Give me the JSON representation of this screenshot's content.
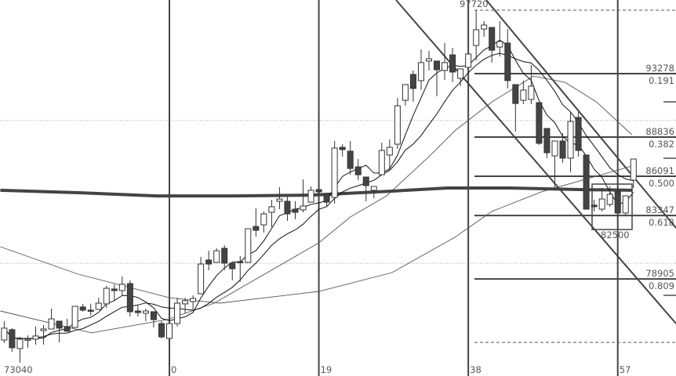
{
  "chart_data": {
    "type": "candlestick",
    "title": "",
    "x_tick_labels": [
      {
        "value": 0,
        "label": "0"
      },
      {
        "value": 19,
        "label": "19"
      },
      {
        "value": 38,
        "label": "38"
      },
      {
        "value": 57,
        "label": "57"
      }
    ],
    "first_bar_index": -21,
    "ohlc_fields": [
      "open",
      "high",
      "low",
      "close"
    ],
    "candles": [
      [
        74630,
        75950,
        74420,
        75460
      ],
      [
        75350,
        75460,
        73810,
        74090
      ],
      [
        74030,
        74850,
        73040,
        74690
      ],
      [
        74630,
        74960,
        74090,
        74690
      ],
      [
        74690,
        75570,
        74310,
        74910
      ],
      [
        75290,
        75680,
        74310,
        75400
      ],
      [
        75400,
        76830,
        75400,
        76110
      ],
      [
        75950,
        75950,
        74470,
        75460
      ],
      [
        75570,
        76110,
        75240,
        75240
      ],
      [
        75510,
        76990,
        75510,
        76990
      ],
      [
        76940,
        77160,
        76610,
        76720
      ],
      [
        76720,
        77160,
        76330,
        76660
      ],
      [
        76770,
        77590,
        76770,
        77210
      ],
      [
        77160,
        78420,
        76880,
        78250
      ],
      [
        78200,
        78530,
        77430,
        78090
      ],
      [
        78090,
        79080,
        77760,
        78530
      ],
      [
        78580,
        78800,
        76280,
        76610
      ],
      [
        76660,
        77050,
        76280,
        76550
      ],
      [
        76500,
        76830,
        75950,
        76660
      ],
      [
        76610,
        76610,
        75510,
        76060
      ],
      [
        75780,
        75950,
        74740,
        74850
      ],
      [
        74740,
        75780,
        74740,
        75780
      ],
      [
        75780,
        77590,
        75570,
        77210
      ],
      [
        77160,
        77590,
        76500,
        77380
      ],
      [
        77320,
        77760,
        76770,
        77540
      ],
      [
        77870,
        80450,
        77870,
        79950
      ],
      [
        80230,
        80880,
        79510,
        79950
      ],
      [
        80060,
        81050,
        80060,
        80880
      ],
      [
        81050,
        81270,
        79510,
        80010
      ],
      [
        80010,
        80010,
        78800,
        79620
      ],
      [
        80120,
        80500,
        78690,
        80060
      ],
      [
        80060,
        82420,
        80060,
        82420
      ],
      [
        82580,
        83840,
        81870,
        82310
      ],
      [
        82690,
        83630,
        82150,
        83460
      ],
      [
        83570,
        84450,
        82530,
        83960
      ],
      [
        84340,
        85330,
        83790,
        84500
      ],
      [
        84340,
        84670,
        82970,
        83460
      ],
      [
        83790,
        84340,
        83080,
        83570
      ],
      [
        83740,
        85870,
        83570,
        84010
      ],
      [
        84280,
        85380,
        84280,
        85110
      ],
      [
        85160,
        85160,
        84720,
        85000
      ],
      [
        84890,
        84890,
        84010,
        84280
      ],
      [
        84610,
        88560,
        84180,
        88070
      ],
      [
        88120,
        88340,
        87470,
        87960
      ],
      [
        87850,
        88560,
        86200,
        86640
      ],
      [
        86750,
        87300,
        85820,
        86200
      ],
      [
        86040,
        86040,
        84340,
        85440
      ],
      [
        85110,
        85380,
        84560,
        85380
      ],
      [
        86200,
        88450,
        86200,
        87900
      ],
      [
        87580,
        88670,
        86640,
        88120
      ],
      [
        88340,
        91580,
        88010,
        91030
      ],
      [
        91410,
        92510,
        91030,
        92510
      ],
      [
        93220,
        93500,
        91300,
        92240
      ],
      [
        92790,
        94980,
        92130,
        94050
      ],
      [
        94160,
        94870,
        93500,
        94320
      ],
      [
        94160,
        94160,
        91690,
        93550
      ],
      [
        93500,
        95420,
        92840,
        94050
      ],
      [
        94590,
        95090,
        92680,
        93390
      ],
      [
        92950,
        93610,
        92400,
        93610
      ],
      [
        93720,
        94650,
        93720,
        94650
      ],
      [
        95250,
        97720,
        94210,
        96350
      ],
      [
        96400,
        96950,
        95860,
        96680
      ],
      [
        96510,
        96510,
        94050,
        94920
      ],
      [
        95140,
        96950,
        94480,
        95530
      ],
      [
        95420,
        96400,
        92240,
        92790
      ],
      [
        92510,
        92510,
        89220,
        91190
      ],
      [
        91410,
        92790,
        91140,
        92130
      ],
      [
        91470,
        93880,
        91140,
        92400
      ],
      [
        91250,
        91250,
        88290,
        88400
      ],
      [
        89440,
        89440,
        87360,
        87740
      ],
      [
        87520,
        88560,
        85270,
        88560
      ],
      [
        88560,
        89110,
        87030,
        87360
      ],
      [
        87360,
        90590,
        86370,
        89930
      ],
      [
        90210,
        90590,
        87470,
        87900
      ],
      [
        87580,
        87580,
        83790,
        83790
      ],
      [
        84070,
        84450,
        83630,
        83960
      ],
      [
        83790,
        85270,
        83630,
        84500
      ],
      [
        84120,
        85380,
        83960,
        84830
      ],
      [
        85000,
        85270,
        83520,
        83520
      ],
      [
        83520,
        84720,
        83350,
        84720
      ],
      [
        85820,
        87300,
        85270,
        87300
      ]
    ],
    "computed_moving_averages": [
      5,
      10
    ],
    "other_lines": [
      {
        "id": "ma-mid",
        "color": "#555555",
        "points": [
          [
            -21.5,
            76660
          ],
          [
            -9.9,
            75130
          ],
          [
            -0.3,
            76060
          ],
          [
            5.7,
            77210
          ],
          [
            19,
            81430
          ],
          [
            23,
            83240
          ],
          [
            27.6,
            84720
          ],
          [
            33,
            87470
          ],
          [
            36.3,
            89280
          ],
          [
            41,
            91300
          ],
          [
            46.3,
            93110
          ],
          [
            50.3,
            92670
          ],
          [
            54.3,
            91300
          ],
          [
            58.8,
            89000
          ]
        ]
      },
      {
        "id": "ma-long",
        "color": "#555555",
        "points": [
          [
            -21.5,
            81160
          ],
          [
            -11.6,
            79240
          ],
          [
            0,
            77590
          ],
          [
            6.4,
            77210
          ],
          [
            19,
            78030
          ],
          [
            28.3,
            79350
          ],
          [
            36.3,
            81820
          ],
          [
            41,
            83630
          ],
          [
            47.3,
            85000
          ],
          [
            58.8,
            86810
          ]
        ]
      },
      {
        "id": "ma-thick",
        "color": "#444444",
        "points": [
          [
            -21.5,
            85110
          ],
          [
            -11.6,
            84940
          ],
          [
            -1.6,
            84720
          ],
          [
            8.4,
            84720
          ],
          [
            18.3,
            84780
          ],
          [
            28.3,
            85050
          ],
          [
            35.3,
            85270
          ],
          [
            43.3,
            85270
          ],
          [
            52.2,
            85160
          ],
          [
            58.8,
            85110
          ]
        ]
      }
    ],
    "price_gridlines": [
      90000,
      80000
    ],
    "fibonacci": {
      "high": 97720,
      "low": 74462,
      "levels": [
        {
          "price": "93278",
          "ratio": "0.191"
        },
        {
          "price": "88836",
          "ratio": "0.382"
        },
        {
          "price": "86091",
          "ratio": "0.500"
        },
        {
          "price": "83347",
          "ratio": "0.618"
        },
        {
          "price": "78905",
          "ratio": "0.809"
        }
      ]
    },
    "annotations": {
      "high_label": "97720",
      "low_label": "73040",
      "box_label": "82500"
    },
    "colors": {
      "bear": "#444444",
      "bull": "#ffffff",
      "line": "#333333",
      "grid": "#999999"
    }
  }
}
